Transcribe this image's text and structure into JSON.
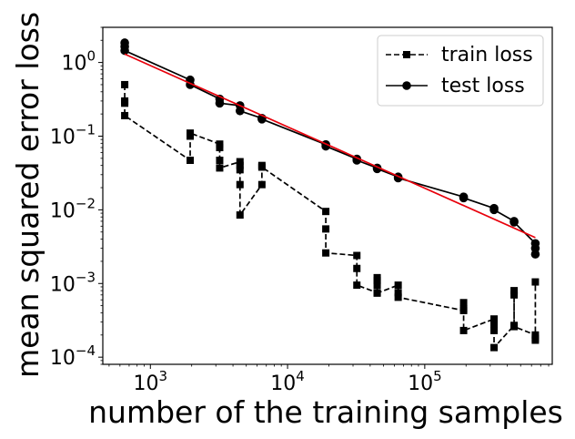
{
  "chart_data": {
    "type": "line",
    "xscale": "log",
    "yscale": "log",
    "xlim": [
      450,
      850000
    ],
    "ylim": [
      8e-05,
      3
    ],
    "xlabel": "number of the training samples",
    "ylabel": "mean squared error loss",
    "x_ticks": [
      {
        "value": 1000,
        "base": "10",
        "exp": "3"
      },
      {
        "value": 10000,
        "base": "10",
        "exp": "4"
      },
      {
        "value": 100000,
        "base": "10",
        "exp": "5"
      }
    ],
    "y_ticks": [
      {
        "value": 1,
        "base": "10",
        "exp": "0"
      },
      {
        "value": 0.1,
        "base": "10",
        "exp": "−1"
      },
      {
        "value": 0.01,
        "base": "10",
        "exp": "−2"
      },
      {
        "value": 0.001,
        "base": "10",
        "exp": "−3"
      },
      {
        "value": 0.0001,
        "base": "10",
        "exp": "−4"
      }
    ],
    "legend_position": "top-right",
    "series": [
      {
        "name": "train loss",
        "style": "dashed",
        "marker": "square",
        "color": "#000000",
        "points": [
          [
            650,
            0.5
          ],
          [
            650,
            0.3
          ],
          [
            650,
            0.28
          ],
          [
            650,
            0.19
          ],
          [
            1950,
            0.047
          ],
          [
            1950,
            0.1
          ],
          [
            1950,
            0.11
          ],
          [
            3200,
            0.078
          ],
          [
            3200,
            0.07
          ],
          [
            3200,
            0.047
          ],
          [
            3200,
            0.037
          ],
          [
            4500,
            0.045
          ],
          [
            4500,
            0.04
          ],
          [
            4500,
            0.035
          ],
          [
            4500,
            0.022
          ],
          [
            4500,
            0.0085
          ],
          [
            6500,
            0.022
          ],
          [
            6500,
            0.04
          ],
          [
            6500,
            0.038
          ],
          [
            19000,
            0.0095
          ],
          [
            19000,
            0.0055
          ],
          [
            19000,
            0.0026
          ],
          [
            32000,
            0.0024
          ],
          [
            32000,
            0.0016
          ],
          [
            32000,
            0.00095
          ],
          [
            45000,
            0.00075
          ],
          [
            45000,
            0.0011
          ],
          [
            45000,
            0.0012
          ],
          [
            45000,
            0.00095
          ],
          [
            45000,
            0.00074
          ],
          [
            64000,
            0.00095
          ],
          [
            64000,
            0.00075
          ],
          [
            64000,
            0.00065
          ],
          [
            192000,
            0.00043
          ],
          [
            192000,
            0.00055
          ],
          [
            192000,
            0.00045
          ],
          [
            192000,
            0.00023
          ],
          [
            320000,
            0.00033
          ],
          [
            320000,
            0.00028
          ],
          [
            320000,
            0.00023
          ],
          [
            320000,
            0.000135
          ],
          [
            448000,
            0.00027
          ],
          [
            448000,
            0.0008
          ],
          [
            448000,
            0.0007
          ],
          [
            448000,
            0.00026
          ],
          [
            640000,
            0.0002
          ],
          [
            640000,
            0.00017
          ],
          [
            640000,
            0.00018
          ],
          [
            640000,
            0.00105
          ]
        ]
      },
      {
        "name": "test loss",
        "style": "solid",
        "marker": "circle",
        "color": "#000000",
        "points": [
          [
            650,
            1.85
          ],
          [
            650,
            1.65
          ],
          [
            650,
            1.45
          ],
          [
            1950,
            0.58
          ],
          [
            1950,
            0.5
          ],
          [
            3200,
            0.32
          ],
          [
            3200,
            0.28
          ],
          [
            4500,
            0.26
          ],
          [
            4500,
            0.22
          ],
          [
            6500,
            0.175
          ],
          [
            6500,
            0.17
          ],
          [
            19000,
            0.077
          ],
          [
            19000,
            0.073
          ],
          [
            32000,
            0.049
          ],
          [
            32000,
            0.047
          ],
          [
            45000,
            0.037
          ],
          [
            45000,
            0.036
          ],
          [
            64000,
            0.028
          ],
          [
            64000,
            0.027
          ],
          [
            192000,
            0.015
          ],
          [
            192000,
            0.0145
          ],
          [
            320000,
            0.0105
          ],
          [
            320000,
            0.01
          ],
          [
            448000,
            0.007
          ],
          [
            448000,
            0.0068
          ],
          [
            640000,
            0.0035
          ],
          [
            640000,
            0.003
          ],
          [
            640000,
            0.0025
          ]
        ]
      },
      {
        "name": "fit",
        "style": "solid",
        "marker": "none",
        "color": "#e8000b",
        "points": [
          [
            650,
            1.3
          ],
          [
            640000,
            0.0042
          ]
        ]
      }
    ],
    "legend": [
      {
        "label": "train loss",
        "series": 0
      },
      {
        "label": "test loss",
        "series": 1
      }
    ]
  }
}
